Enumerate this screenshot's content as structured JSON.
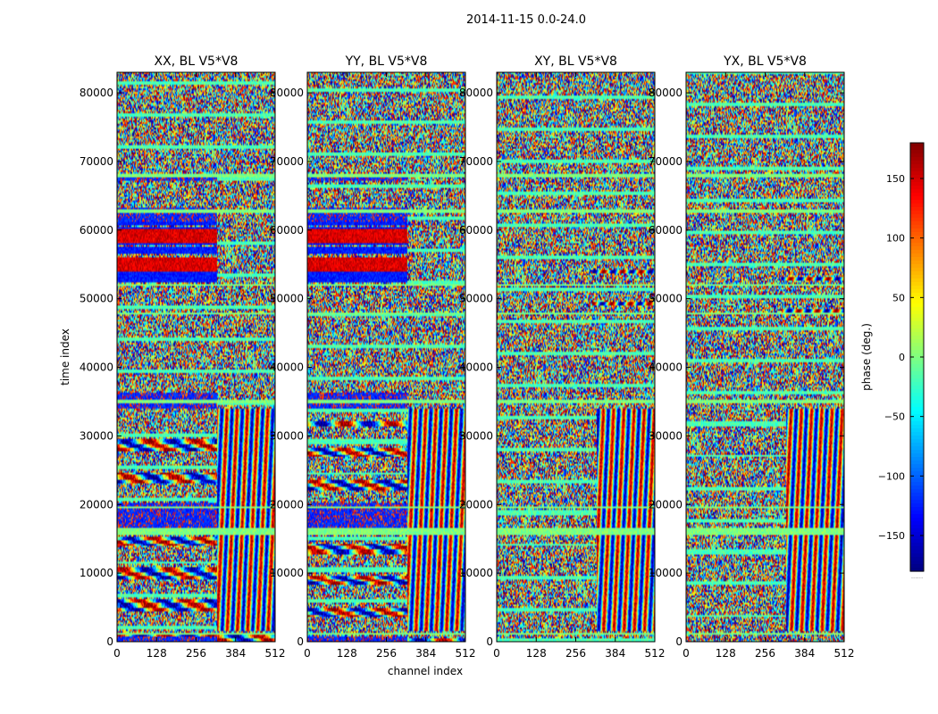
{
  "figure": {
    "suptitle": "2014-11-15 0.0-24.0"
  },
  "chart_data": {
    "type": "heatmap",
    "title": "2014-11-15 0.0-24.0",
    "xlabel": "channel index",
    "ylabel": "time index",
    "xlim": [
      0,
      512
    ],
    "ylim": [
      0,
      83000
    ],
    "xticks": [
      0,
      128,
      256,
      384,
      512
    ],
    "yticks": [
      0,
      10000,
      20000,
      30000,
      40000,
      50000,
      60000,
      70000,
      80000
    ],
    "xtick_labels": [
      "0",
      "128",
      "256",
      "384",
      "512"
    ],
    "ytick_labels": [
      "0",
      "10000",
      "20000",
      "30000",
      "40000",
      "50000",
      "60000",
      "70000",
      "80000"
    ],
    "panels": [
      {
        "title": "XX, BL V5*V8",
        "polarization": "XX"
      },
      {
        "title": "YY, BL V5*V8",
        "polarization": "YY"
      },
      {
        "title": "XY, BL V5*V8",
        "polarization": "XY"
      },
      {
        "title": "YX, BL V5*V8",
        "polarization": "YX"
      }
    ],
    "colorbar": {
      "label": "phase (deg.)",
      "range": [
        -180,
        180
      ],
      "ticks": [
        -150,
        -100,
        -50,
        0,
        50,
        100,
        150
      ],
      "tick_labels": [
        "−150",
        "−100",
        "−50",
        "0",
        "50",
        "100",
        "150"
      ],
      "colormap": "jet",
      "extend_label": "......"
    }
  }
}
